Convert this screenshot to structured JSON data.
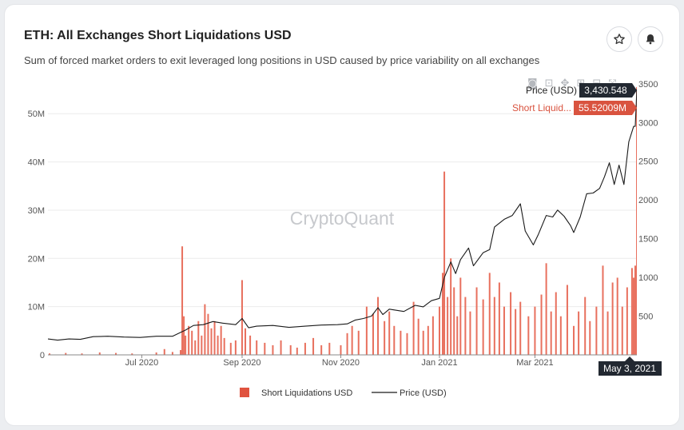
{
  "header": {
    "title": "ETH: All Exchanges Short Liquidations USD",
    "subtitle": "Sum of forced market orders to exit leveraged long positions in USD caused by price variability on all exchanges",
    "star_icon": "star-icon",
    "bell_icon": "bell-icon"
  },
  "modebar": [
    "camera-icon",
    "zoom-icon",
    "pan-icon",
    "zoom-in-icon",
    "zoom-out-icon",
    "autoscale-icon"
  ],
  "watermark": "CryptoQuant",
  "hover": {
    "price_label": "Price (USD)",
    "price_value": "3,430.548",
    "short_label": "Short Liquid...",
    "short_value": "55.52009M",
    "date": "May 3, 2021"
  },
  "colors": {
    "bars": "#e8705e",
    "price_line": "#1a1a1a",
    "hover_dark": "#222831",
    "hover_red": "#d9533f"
  },
  "legend": {
    "short": "Short Liquidations USD",
    "price": "Price (USD)"
  },
  "chart_data": {
    "type": "bar+line",
    "x_range": [
      "2020-05-04",
      "2021-05-03"
    ],
    "x_ticks": [
      "Jul 2020",
      "Sep 2020",
      "Nov 2020",
      "Jan 2021",
      "Mar 2021"
    ],
    "y_left_ticks": [
      "0",
      "10M",
      "20M",
      "30M",
      "40M",
      "50M"
    ],
    "y_left_range": [
      0,
      57000000
    ],
    "y_right_ticks": [
      "500",
      "1000",
      "1500",
      "2000",
      "2500",
      "3000",
      "3500"
    ],
    "y_right_range": [
      0,
      3550
    ],
    "series": [
      {
        "name": "Short Liquidations USD",
        "axis": "left",
        "unit": "M",
        "points": [
          [
            "2020-05-05",
            0.3
          ],
          [
            "2020-05-15",
            0.4
          ],
          [
            "2020-05-25",
            0.3
          ],
          [
            "2020-06-05",
            0.5
          ],
          [
            "2020-06-15",
            0.4
          ],
          [
            "2020-06-25",
            0.3
          ],
          [
            "2020-07-10",
            0.5
          ],
          [
            "2020-07-15",
            1.2
          ],
          [
            "2020-07-20",
            0.6
          ],
          [
            "2020-07-25",
            1.0
          ],
          [
            "2020-07-26",
            22.5
          ],
          [
            "2020-07-27",
            8.0
          ],
          [
            "2020-07-28",
            4.0
          ],
          [
            "2020-07-30",
            6.0
          ],
          [
            "2020-08-01",
            5.0
          ],
          [
            "2020-08-03",
            3.0
          ],
          [
            "2020-08-05",
            7.0
          ],
          [
            "2020-08-07",
            4.0
          ],
          [
            "2020-08-09",
            10.5
          ],
          [
            "2020-08-11",
            8.5
          ],
          [
            "2020-08-13",
            5.5
          ],
          [
            "2020-08-15",
            7.0
          ],
          [
            "2020-08-17",
            4.0
          ],
          [
            "2020-08-19",
            6.0
          ],
          [
            "2020-08-21",
            3.5
          ],
          [
            "2020-08-25",
            2.5
          ],
          [
            "2020-08-28",
            3.0
          ],
          [
            "2020-09-01",
            15.5
          ],
          [
            "2020-09-03",
            5.5
          ],
          [
            "2020-09-06",
            4.0
          ],
          [
            "2020-09-10",
            3.0
          ],
          [
            "2020-09-15",
            2.5
          ],
          [
            "2020-09-20",
            2.0
          ],
          [
            "2020-09-25",
            3.0
          ],
          [
            "2020-10-01",
            2.0
          ],
          [
            "2020-10-05",
            1.5
          ],
          [
            "2020-10-10",
            2.5
          ],
          [
            "2020-10-15",
            3.5
          ],
          [
            "2020-10-20",
            2.0
          ],
          [
            "2020-10-25",
            2.5
          ],
          [
            "2020-11-01",
            2.0
          ],
          [
            "2020-11-05",
            4.5
          ],
          [
            "2020-11-08",
            6.0
          ],
          [
            "2020-11-12",
            5.0
          ],
          [
            "2020-11-17",
            10.0
          ],
          [
            "2020-11-21",
            8.5
          ],
          [
            "2020-11-24",
            12.0
          ],
          [
            "2020-11-28",
            7.0
          ],
          [
            "2020-12-01",
            9.0
          ],
          [
            "2020-12-04",
            6.0
          ],
          [
            "2020-12-08",
            5.0
          ],
          [
            "2020-12-12",
            4.5
          ],
          [
            "2020-12-16",
            11.0
          ],
          [
            "2020-12-19",
            7.5
          ],
          [
            "2020-12-22",
            5.0
          ],
          [
            "2020-12-25",
            6.0
          ],
          [
            "2020-12-28",
            8.0
          ],
          [
            "2021-01-01",
            10.0
          ],
          [
            "2021-01-03",
            17.0
          ],
          [
            "2021-01-04",
            38.0
          ],
          [
            "2021-01-06",
            12.0
          ],
          [
            "2021-01-08",
            20.0
          ],
          [
            "2021-01-10",
            14.0
          ],
          [
            "2021-01-12",
            8.0
          ],
          [
            "2021-01-14",
            16.0
          ],
          [
            "2021-01-17",
            12.0
          ],
          [
            "2021-01-20",
            9.0
          ],
          [
            "2021-01-24",
            14.0
          ],
          [
            "2021-01-28",
            11.5
          ],
          [
            "2021-02-01",
            17.0
          ],
          [
            "2021-02-04",
            12.0
          ],
          [
            "2021-02-07",
            15.0
          ],
          [
            "2021-02-10",
            10.0
          ],
          [
            "2021-02-14",
            13.0
          ],
          [
            "2021-02-17",
            9.5
          ],
          [
            "2021-02-20",
            11.0
          ],
          [
            "2021-02-25",
            8.0
          ],
          [
            "2021-03-01",
            10.0
          ],
          [
            "2021-03-05",
            12.5
          ],
          [
            "2021-03-08",
            19.0
          ],
          [
            "2021-03-11",
            9.0
          ],
          [
            "2021-03-14",
            13.0
          ],
          [
            "2021-03-17",
            8.0
          ],
          [
            "2021-03-21",
            14.5
          ],
          [
            "2021-03-25",
            6.0
          ],
          [
            "2021-03-28",
            9.0
          ],
          [
            "2021-04-01",
            12.0
          ],
          [
            "2021-04-04",
            7.0
          ],
          [
            "2021-04-08",
            10.0
          ],
          [
            "2021-04-12",
            18.5
          ],
          [
            "2021-04-15",
            9.0
          ],
          [
            "2021-04-18",
            15.0
          ],
          [
            "2021-04-21",
            16.0
          ],
          [
            "2021-04-24",
            10.0
          ],
          [
            "2021-04-27",
            14.0
          ],
          [
            "2021-04-30",
            18.0
          ],
          [
            "2021-05-01",
            16.0
          ],
          [
            "2021-05-02",
            18.5
          ],
          [
            "2021-05-03",
            55.52
          ]
        ]
      },
      {
        "name": "Price (USD)",
        "axis": "right",
        "points": [
          [
            "2020-05-04",
            205
          ],
          [
            "2020-05-10",
            190
          ],
          [
            "2020-05-17",
            205
          ],
          [
            "2020-05-24",
            200
          ],
          [
            "2020-06-01",
            235
          ],
          [
            "2020-06-10",
            240
          ],
          [
            "2020-06-20",
            230
          ],
          [
            "2020-06-30",
            225
          ],
          [
            "2020-07-10",
            240
          ],
          [
            "2020-07-20",
            240
          ],
          [
            "2020-07-25",
            290
          ],
          [
            "2020-07-28",
            320
          ],
          [
            "2020-08-02",
            380
          ],
          [
            "2020-08-08",
            390
          ],
          [
            "2020-08-14",
            430
          ],
          [
            "2020-08-20",
            410
          ],
          [
            "2020-08-28",
            390
          ],
          [
            "2020-09-01",
            470
          ],
          [
            "2020-09-05",
            350
          ],
          [
            "2020-09-10",
            370
          ],
          [
            "2020-09-20",
            380
          ],
          [
            "2020-09-30",
            355
          ],
          [
            "2020-10-10",
            370
          ],
          [
            "2020-10-20",
            385
          ],
          [
            "2020-10-30",
            390
          ],
          [
            "2020-11-05",
            400
          ],
          [
            "2020-11-10",
            450
          ],
          [
            "2020-11-15",
            470
          ],
          [
            "2020-11-20",
            500
          ],
          [
            "2020-11-24",
            610
          ],
          [
            "2020-11-27",
            520
          ],
          [
            "2020-12-01",
            590
          ],
          [
            "2020-12-10",
            560
          ],
          [
            "2020-12-17",
            640
          ],
          [
            "2020-12-22",
            620
          ],
          [
            "2020-12-27",
            700
          ],
          [
            "2021-01-01",
            730
          ],
          [
            "2021-01-04",
            1000
          ],
          [
            "2021-01-08",
            1200
          ],
          [
            "2021-01-11",
            1050
          ],
          [
            "2021-01-14",
            1230
          ],
          [
            "2021-01-19",
            1380
          ],
          [
            "2021-01-22",
            1150
          ],
          [
            "2021-01-28",
            1320
          ],
          [
            "2021-02-01",
            1360
          ],
          [
            "2021-02-04",
            1650
          ],
          [
            "2021-02-10",
            1750
          ],
          [
            "2021-02-15",
            1800
          ],
          [
            "2021-02-20",
            1950
          ],
          [
            "2021-02-23",
            1600
          ],
          [
            "2021-02-28",
            1420
          ],
          [
            "2021-03-03",
            1550
          ],
          [
            "2021-03-08",
            1800
          ],
          [
            "2021-03-12",
            1780
          ],
          [
            "2021-03-15",
            1870
          ],
          [
            "2021-03-19",
            1790
          ],
          [
            "2021-03-23",
            1670
          ],
          [
            "2021-03-25",
            1580
          ],
          [
            "2021-03-29",
            1780
          ],
          [
            "2021-04-02",
            2080
          ],
          [
            "2021-04-06",
            2090
          ],
          [
            "2021-04-10",
            2150
          ],
          [
            "2021-04-13",
            2300
          ],
          [
            "2021-04-16",
            2480
          ],
          [
            "2021-04-19",
            2200
          ],
          [
            "2021-04-22",
            2450
          ],
          [
            "2021-04-25",
            2200
          ],
          [
            "2021-04-28",
            2750
          ],
          [
            "2021-05-01",
            2950
          ],
          [
            "2021-05-02",
            2950
          ],
          [
            "2021-05-03",
            3430
          ]
        ]
      }
    ]
  }
}
